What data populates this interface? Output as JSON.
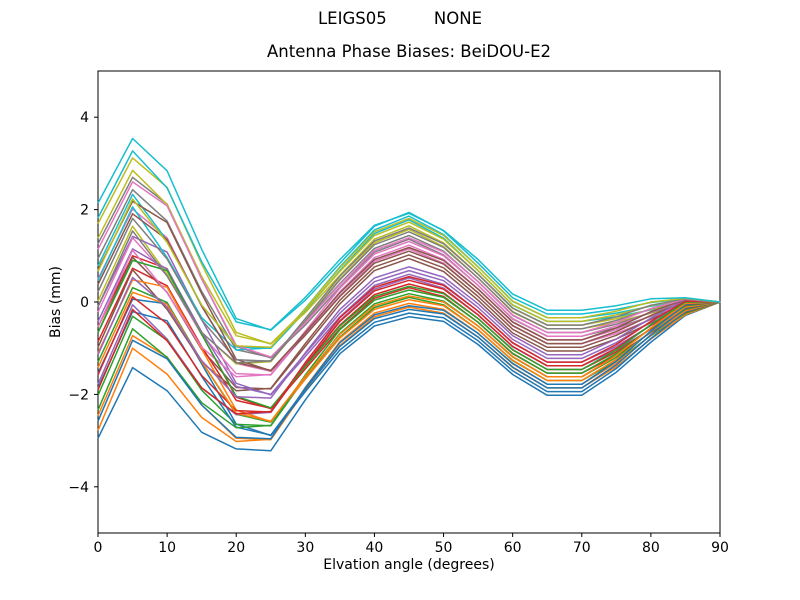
{
  "chart_data": {
    "type": "line",
    "suptitle": "LEIGS05         NONE",
    "title": "Antenna Phase Biases: BeiDOU-E2",
    "xlabel": "Elvation angle (degrees)",
    "ylabel": "Bias (mm)",
    "xlim": [
      0,
      90
    ],
    "ylim": [
      -5,
      5
    ],
    "xticks": [
      0,
      10,
      20,
      30,
      40,
      50,
      60,
      70,
      80,
      90
    ],
    "yticks": [
      -4,
      -2,
      0,
      2,
      4
    ],
    "grid": false,
    "legend": "none",
    "line_width": 1.5,
    "color_cycle": [
      "#1f77b4",
      "#ff7f0e",
      "#2ca02c",
      "#d62728",
      "#9467bd",
      "#8c564b",
      "#e377c2",
      "#7f7f7f",
      "#bcbd22",
      "#17becf"
    ],
    "x": [
      0,
      5,
      10,
      15,
      20,
      25,
      30,
      35,
      40,
      45,
      50,
      55,
      60,
      65,
      70,
      75,
      80,
      85,
      90
    ],
    "series": [
      {
        "color": "#1f77b4",
        "values": [
          -2.95,
          -1.42,
          -1.92,
          -2.82,
          -3.18,
          -3.22,
          -2.12,
          -1.12,
          -0.52,
          -0.32,
          -0.42,
          -0.92,
          -1.57,
          -2.02,
          -2.02,
          -1.52,
          -0.87,
          -0.29,
          0
        ]
      },
      {
        "color": "#ff7f0e",
        "values": [
          -2.46,
          -0.73,
          -1.19,
          -2.23,
          -2.95,
          -2.98,
          -1.91,
          -0.94,
          -0.32,
          -0.11,
          -0.24,
          -0.76,
          -1.42,
          -1.86,
          -1.86,
          -1.4,
          -0.8,
          -0.27,
          0
        ]
      },
      {
        "color": "#2ca02c",
        "values": [
          -1.3,
          0.31,
          -0.01,
          -1.29,
          -2.43,
          -2.6,
          -1.66,
          -0.76,
          -0.12,
          0.1,
          -0.06,
          -0.6,
          -1.27,
          -1.7,
          -1.7,
          -1.28,
          -0.73,
          -0.24,
          0
        ]
      },
      {
        "color": "#d62728",
        "values": [
          -0.54,
          1.0,
          0.72,
          -0.7,
          -2.06,
          -2.31,
          -1.45,
          -0.58,
          0.08,
          0.31,
          0.12,
          -0.44,
          -1.12,
          -1.54,
          -1.54,
          -1.16,
          -0.66,
          -0.22,
          0
        ]
      },
      {
        "color": "#9467bd",
        "values": [
          -1.78,
          -0.06,
          -0.8,
          -1.86,
          -2.44,
          -2.39,
          -1.36,
          -0.4,
          0.28,
          0.52,
          0.3,
          -0.28,
          -0.97,
          -1.38,
          -1.38,
          -1.04,
          -0.59,
          -0.19,
          0
        ]
      },
      {
        "color": "#8c564b",
        "values": [
          -0.66,
          0.97,
          0.21,
          -1.03,
          -1.85,
          -1.88,
          -0.96,
          -0.04,
          0.68,
          0.94,
          0.66,
          0.04,
          -0.67,
          -1.06,
          -1.06,
          -0.8,
          -0.45,
          -0.15,
          0
        ]
      },
      {
        "color": "#e377c2",
        "values": [
          0.5,
          2.01,
          1.39,
          -0.09,
          -1.33,
          -1.5,
          -0.71,
          0.14,
          0.88,
          1.15,
          0.84,
          0.2,
          -0.52,
          -0.9,
          -0.9,
          -0.68,
          -0.38,
          -0.12,
          0
        ]
      },
      {
        "color": "#7f7f7f",
        "values": [
          1.26,
          2.7,
          2.12,
          0.5,
          -0.96,
          -1.21,
          -0.5,
          0.32,
          1.08,
          1.36,
          1.02,
          0.36,
          -0.37,
          -0.74,
          -0.74,
          -0.56,
          -0.31,
          -0.1,
          0
        ]
      },
      {
        "color": "#bcbd22",
        "values": [
          0.02,
          1.64,
          0.6,
          -0.66,
          -1.34,
          -1.29,
          -0.41,
          0.5,
          1.28,
          1.57,
          1.2,
          0.52,
          -0.22,
          -0.58,
          -0.58,
          -0.44,
          -0.24,
          -0.07,
          0
        ]
      },
      {
        "color": "#17becf",
        "values": [
          0.78,
          2.33,
          1.33,
          -0.07,
          -0.97,
          -1.0,
          -0.2,
          0.68,
          1.48,
          1.78,
          1.38,
          0.68,
          -0.07,
          -0.42,
          -0.42,
          -0.32,
          -0.17,
          -0.05,
          0
        ]
      },
      {
        "color": "#1f77b4",
        "values": [
          -1.54,
          0.06,
          -0.04,
          -1.34,
          -2.64,
          -2.89,
          -1.94,
          -1.04,
          -0.44,
          -0.24,
          -0.34,
          -0.84,
          -1.49,
          -1.94,
          -1.94,
          -1.44,
          -0.79,
          -0.21,
          0
        ]
      },
      {
        "color": "#ff7f0e",
        "values": [
          -2.78,
          -1.0,
          -1.56,
          -2.5,
          -3.02,
          -2.97,
          -1.85,
          -0.86,
          -0.24,
          -0.03,
          -0.16,
          -0.68,
          -1.34,
          -1.78,
          -1.78,
          -1.32,
          -0.72,
          -0.19,
          0
        ]
      },
      {
        "color": "#2ca02c",
        "values": [
          -2.02,
          -0.31,
          -0.83,
          -1.91,
          -2.65,
          -2.68,
          -1.64,
          -0.68,
          -0.04,
          0.18,
          0.02,
          -0.52,
          -1.19,
          -1.62,
          -1.62,
          -1.2,
          -0.65,
          -0.16,
          0
        ]
      },
      {
        "color": "#d62728",
        "values": [
          -0.86,
          0.73,
          0.35,
          -0.97,
          -2.13,
          -2.3,
          -1.39,
          -0.5,
          0.16,
          0.39,
          0.2,
          -0.36,
          -1.04,
          -1.46,
          -1.46,
          -1.08,
          -0.58,
          -0.14,
          0
        ]
      },
      {
        "color": "#9467bd",
        "values": [
          -0.1,
          1.42,
          1.08,
          -0.38,
          -1.76,
          -2.01,
          -1.18,
          -0.32,
          0.36,
          0.6,
          0.38,
          -0.2,
          -0.89,
          -1.3,
          -1.3,
          -0.96,
          -0.51,
          -0.11,
          0
        ]
      },
      {
        "color": "#8c564b",
        "values": [
          -0.98,
          0.7,
          -0.16,
          -1.3,
          -1.92,
          -1.87,
          -0.9,
          0.04,
          0.76,
          1.02,
          0.74,
          0.12,
          -0.59,
          -0.98,
          -0.98,
          -0.72,
          -0.37,
          -0.07,
          0
        ]
      },
      {
        "color": "#e377c2",
        "values": [
          -0.22,
          1.39,
          0.57,
          -0.71,
          -1.55,
          -1.58,
          -0.69,
          0.22,
          0.96,
          1.23,
          0.92,
          0.28,
          -0.44,
          -0.82,
          -0.82,
          -0.6,
          -0.3,
          -0.04,
          0
        ]
      },
      {
        "color": "#7f7f7f",
        "values": [
          0.94,
          2.43,
          1.75,
          0.23,
          -1.03,
          -1.2,
          -0.44,
          0.4,
          1.16,
          1.44,
          1.1,
          0.44,
          -0.29,
          -0.66,
          -0.66,
          -0.48,
          -0.23,
          -0.02,
          0
        ]
      },
      {
        "color": "#bcbd22",
        "values": [
          1.7,
          3.12,
          2.48,
          0.82,
          -0.66,
          -0.91,
          -0.23,
          0.58,
          1.36,
          1.65,
          1.28,
          0.6,
          -0.14,
          -0.5,
          -0.5,
          -0.36,
          -0.16,
          0.01,
          0
        ]
      },
      {
        "color": "#17becf",
        "values": [
          0.46,
          2.06,
          0.96,
          -0.34,
          -1.04,
          -0.99,
          -0.14,
          0.76,
          1.56,
          1.86,
          1.46,
          0.76,
          0.01,
          -0.34,
          -0.34,
          -0.24,
          -0.09,
          0.03,
          0
        ]
      },
      {
        "color": "#1f77b4",
        "values": [
          -1.86,
          -0.21,
          -0.41,
          -1.61,
          -2.71,
          -2.88,
          -1.88,
          -0.96,
          -0.36,
          -0.16,
          -0.26,
          -0.76,
          -1.41,
          -1.86,
          -1.86,
          -1.36,
          -0.71,
          -0.13,
          0
        ]
      },
      {
        "color": "#ff7f0e",
        "values": [
          -1.1,
          0.48,
          0.32,
          -1.02,
          -2.34,
          -2.59,
          -1.67,
          -0.78,
          -0.16,
          0.05,
          -0.08,
          -0.6,
          -1.26,
          -1.7,
          -1.7,
          -1.24,
          -0.64,
          -0.11,
          0
        ]
      },
      {
        "color": "#2ca02c",
        "values": [
          -2.34,
          -0.58,
          -1.2,
          -2.18,
          -2.72,
          -2.67,
          -1.58,
          -0.6,
          0.04,
          0.26,
          0.1,
          -0.44,
          -1.11,
          -1.54,
          -1.54,
          -1.12,
          -0.57,
          -0.08,
          0
        ]
      },
      {
        "color": "#d62728",
        "values": [
          -1.58,
          0.11,
          -0.47,
          -1.59,
          -2.35,
          -2.38,
          -1.37,
          -0.42,
          0.24,
          0.47,
          0.28,
          -0.28,
          -0.96,
          -1.38,
          -1.38,
          -1.0,
          -0.5,
          -0.06,
          0
        ]
      },
      {
        "color": "#9467bd",
        "values": [
          -0.42,
          1.15,
          0.71,
          -0.65,
          -1.83,
          -2.0,
          -1.12,
          -0.24,
          0.44,
          0.68,
          0.46,
          -0.12,
          -0.81,
          -1.22,
          -1.22,
          -0.88,
          -0.43,
          -0.03,
          0
        ]
      },
      {
        "color": "#8c564b",
        "values": [
          0.7,
          2.18,
          1.72,
          0.18,
          -1.24,
          -1.49,
          -0.72,
          0.12,
          0.84,
          1.1,
          0.82,
          0.2,
          -0.51,
          -0.9,
          -0.9,
          -0.64,
          -0.29,
          0.01,
          0
        ]
      },
      {
        "color": "#e377c2",
        "values": [
          -0.54,
          1.12,
          0.2,
          -0.98,
          -1.62,
          -1.57,
          -0.63,
          0.3,
          1.04,
          1.31,
          1.0,
          0.36,
          -0.36,
          -0.74,
          -0.74,
          -0.52,
          -0.22,
          0.04,
          0
        ]
      },
      {
        "color": "#7f7f7f",
        "values": [
          0.22,
          1.81,
          0.93,
          -0.39,
          -1.25,
          -1.28,
          -0.42,
          0.48,
          1.24,
          1.52,
          1.18,
          0.52,
          -0.21,
          -0.58,
          -0.58,
          -0.4,
          -0.15,
          0.06,
          0
        ]
      },
      {
        "color": "#bcbd22",
        "values": [
          1.38,
          2.85,
          2.11,
          0.55,
          -0.73,
          -0.9,
          -0.17,
          0.66,
          1.44,
          1.73,
          1.36,
          0.68,
          -0.06,
          -0.42,
          -0.42,
          -0.28,
          -0.08,
          0.07,
          0
        ]
      },
      {
        "color": "#17becf",
        "values": [
          2.14,
          3.54,
          2.84,
          1.14,
          -0.36,
          -0.61,
          0.04,
          0.84,
          1.64,
          1.94,
          1.54,
          0.84,
          0.09,
          -0.26,
          -0.26,
          -0.16,
          -0.01,
          0.07,
          0
        ]
      },
      {
        "color": "#1f77b4",
        "values": [
          -2.58,
          -0.83,
          -1.23,
          -2.23,
          -2.93,
          -2.96,
          -1.86,
          -0.88,
          -0.28,
          -0.08,
          -0.18,
          -0.68,
          -1.33,
          -1.78,
          -1.78,
          -1.28,
          -0.63,
          -0.05,
          0
        ]
      },
      {
        "color": "#ff7f0e",
        "values": [
          -1.42,
          0.21,
          -0.05,
          -1.29,
          -2.41,
          -2.58,
          -1.61,
          -0.7,
          -0.08,
          0.13,
          0.0,
          -0.52,
          -1.18,
          -1.62,
          -1.62,
          -1.16,
          -0.56,
          -0.03,
          0
        ]
      },
      {
        "color": "#2ca02c",
        "values": [
          -0.66,
          0.9,
          0.68,
          -0.7,
          -2.04,
          -2.29,
          -1.4,
          -0.52,
          0.12,
          0.34,
          0.18,
          -0.36,
          -1.03,
          -1.46,
          -1.46,
          -1.04,
          -0.49,
          0.0,
          0
        ]
      },
      {
        "color": "#d62728",
        "values": [
          -1.9,
          -0.16,
          -0.84,
          -1.86,
          -2.42,
          -2.37,
          -1.31,
          -0.34,
          0.32,
          0.55,
          0.36,
          -0.2,
          -0.88,
          -1.3,
          -1.3,
          -0.92,
          -0.42,
          0.02,
          0
        ]
      },
      {
        "color": "#9467bd",
        "values": [
          -1.14,
          0.53,
          -0.11,
          -1.27,
          -2.05,
          -2.08,
          -1.1,
          -0.16,
          0.52,
          0.76,
          0.54,
          -0.04,
          -0.73,
          -1.14,
          -1.14,
          -0.8,
          -0.35,
          0.05,
          0
        ]
      },
      {
        "color": "#8c564b",
        "values": [
          0.38,
          1.91,
          1.35,
          -0.09,
          -1.31,
          -1.48,
          -0.66,
          0.2,
          0.92,
          1.18,
          0.9,
          0.28,
          -0.43,
          -0.82,
          -0.82,
          -0.56,
          -0.21,
          0.05,
          0
        ]
      },
      {
        "color": "#e377c2",
        "values": [
          1.14,
          2.6,
          2.08,
          0.5,
          -0.94,
          -1.19,
          -0.45,
          0.38,
          1.12,
          1.39,
          1.08,
          0.44,
          -0.28,
          -0.66,
          -0.66,
          -0.44,
          -0.14,
          0.06,
          0
        ]
      },
      {
        "color": "#7f7f7f",
        "values": [
          -0.1,
          1.54,
          0.56,
          -0.66,
          -1.32,
          -1.27,
          -0.36,
          0.56,
          1.32,
          1.6,
          1.26,
          0.6,
          -0.13,
          -0.5,
          -0.5,
          -0.32,
          -0.07,
          0.07,
          0
        ]
      },
      {
        "color": "#bcbd22",
        "values": [
          0.66,
          2.23,
          1.29,
          -0.07,
          -0.95,
          -0.98,
          -0.15,
          0.74,
          1.52,
          1.81,
          1.44,
          0.76,
          0.02,
          -0.34,
          -0.34,
          -0.2,
          0.0,
          0.08,
          0
        ]
      },
      {
        "color": "#17becf",
        "values": [
          1.82,
          3.27,
          2.47,
          0.87,
          -0.43,
          -0.6,
          0.1,
          0.92,
          1.66,
          1.92,
          1.55,
          0.92,
          0.17,
          -0.18,
          -0.18,
          -0.08,
          0.07,
          0.09,
          0
        ]
      }
    ]
  }
}
